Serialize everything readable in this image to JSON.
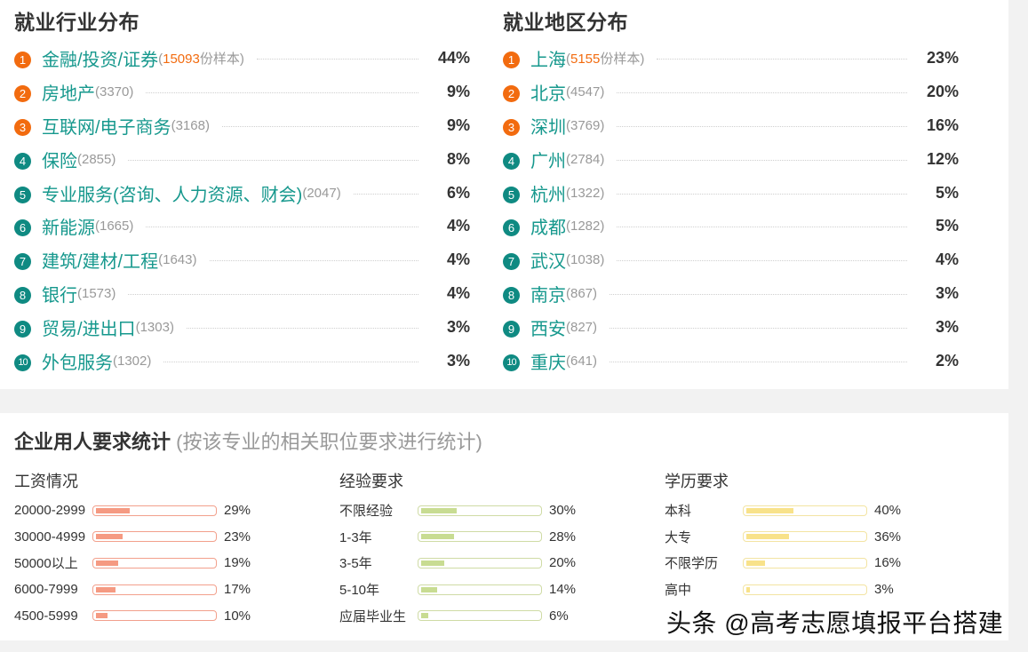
{
  "industry": {
    "title": "就业行业分布",
    "items": [
      {
        "rank": "1",
        "name": "金融/投资/证券",
        "count_prefix": "(",
        "count": "15093",
        "count_suffix": "份样本)",
        "pct": "44%",
        "color": "orange"
      },
      {
        "rank": "2",
        "name": "房地产",
        "count_prefix": "(",
        "count": "3370",
        "count_suffix": ")",
        "pct": "9%",
        "color": "orange"
      },
      {
        "rank": "3",
        "name": "互联网/电子商务",
        "count_prefix": "(",
        "count": "3168",
        "count_suffix": ")",
        "pct": "9%",
        "color": "orange"
      },
      {
        "rank": "4",
        "name": "保险",
        "count_prefix": "(",
        "count": "2855",
        "count_suffix": ")",
        "pct": "8%",
        "color": "teal"
      },
      {
        "rank": "5",
        "name": "专业服务(咨询、人力资源、财会)",
        "count_prefix": "(",
        "count": "2047",
        "count_suffix": ")",
        "pct": "6%",
        "color": "teal"
      },
      {
        "rank": "6",
        "name": "新能源",
        "count_prefix": "(",
        "count": "1665",
        "count_suffix": ")",
        "pct": "4%",
        "color": "teal"
      },
      {
        "rank": "7",
        "name": "建筑/建材/工程",
        "count_prefix": "(",
        "count": "1643",
        "count_suffix": ")",
        "pct": "4%",
        "color": "teal"
      },
      {
        "rank": "8",
        "name": "银行",
        "count_prefix": "(",
        "count": "1573",
        "count_suffix": ")",
        "pct": "4%",
        "color": "teal"
      },
      {
        "rank": "9",
        "name": "贸易/进出口",
        "count_prefix": "(",
        "count": "1303",
        "count_suffix": ")",
        "pct": "3%",
        "color": "teal"
      },
      {
        "rank": "10",
        "name": "外包服务",
        "count_prefix": "(",
        "count": "1302",
        "count_suffix": ")",
        "pct": "3%",
        "color": "teal"
      }
    ]
  },
  "region": {
    "title": "就业地区分布",
    "items": [
      {
        "rank": "1",
        "name": "上海",
        "count_prefix": "(",
        "count": "5155",
        "count_suffix": "份样本)",
        "pct": "23%",
        "color": "orange"
      },
      {
        "rank": "2",
        "name": "北京",
        "count_prefix": "(",
        "count": "4547",
        "count_suffix": ")",
        "pct": "20%",
        "color": "orange"
      },
      {
        "rank": "3",
        "name": "深圳",
        "count_prefix": "(",
        "count": "3769",
        "count_suffix": ")",
        "pct": "16%",
        "color": "orange"
      },
      {
        "rank": "4",
        "name": "广州",
        "count_prefix": "(",
        "count": "2784",
        "count_suffix": ")",
        "pct": "12%",
        "color": "teal"
      },
      {
        "rank": "5",
        "name": "杭州",
        "count_prefix": "(",
        "count": "1322",
        "count_suffix": ")",
        "pct": "5%",
        "color": "teal"
      },
      {
        "rank": "6",
        "name": "成都",
        "count_prefix": "(",
        "count": "1282",
        "count_suffix": ")",
        "pct": "5%",
        "color": "teal"
      },
      {
        "rank": "7",
        "name": "武汉",
        "count_prefix": "(",
        "count": "1038",
        "count_suffix": ")",
        "pct": "4%",
        "color": "teal"
      },
      {
        "rank": "8",
        "name": "南京",
        "count_prefix": "(",
        "count": "867",
        "count_suffix": ")",
        "pct": "3%",
        "color": "teal"
      },
      {
        "rank": "9",
        "name": "西安",
        "count_prefix": "(",
        "count": "827",
        "count_suffix": ")",
        "pct": "3%",
        "color": "teal"
      },
      {
        "rank": "10",
        "name": "重庆",
        "count_prefix": "(",
        "count": "641",
        "count_suffix": ")",
        "pct": "2%",
        "color": "teal"
      }
    ]
  },
  "requirements": {
    "title": "企业用人要求统计",
    "subtitle": " (按该专业的相关职位要求进行统计)",
    "salary": {
      "title": "工资情况",
      "items": [
        {
          "label": "20000-2999",
          "pct": "29%",
          "value": 29
        },
        {
          "label": "30000-4999",
          "pct": "23%",
          "value": 23
        },
        {
          "label": "50000以上",
          "pct": "19%",
          "value": 19
        },
        {
          "label": "6000-7999",
          "pct": "17%",
          "value": 17
        },
        {
          "label": "4500-5999",
          "pct": "10%",
          "value": 10
        }
      ]
    },
    "experience": {
      "title": "经验要求",
      "items": [
        {
          "label": "不限经验",
          "pct": "30%",
          "value": 30
        },
        {
          "label": "1-3年",
          "pct": "28%",
          "value": 28
        },
        {
          "label": "3-5年",
          "pct": "20%",
          "value": 20
        },
        {
          "label": "5-10年",
          "pct": "14%",
          "value": 14
        },
        {
          "label": "应届毕业生",
          "pct": "6%",
          "value": 6
        }
      ]
    },
    "education": {
      "title": "学历要求",
      "items": [
        {
          "label": "本科",
          "pct": "40%",
          "value": 40
        },
        {
          "label": "大专",
          "pct": "36%",
          "value": 36
        },
        {
          "label": "不限学历",
          "pct": "16%",
          "value": 16
        },
        {
          "label": "高中",
          "pct": "3%",
          "value": 3
        }
      ]
    }
  },
  "watermark": "头条 @高考志愿填报平台搭建",
  "colors": {
    "orange": "#f26b0f",
    "teal": "#0f8a82",
    "name_text": "#16988d",
    "salary_bar": "#f59a82",
    "experience_bar": "#c8dc92",
    "education_bar": "#f8e28a",
    "background": "#f2f2f2"
  },
  "chart_data": [
    {
      "type": "table",
      "title": "就业行业分布",
      "categories": [
        "金融/投资/证券",
        "房地产",
        "互联网/电子商务",
        "保险",
        "专业服务(咨询、人力资源、财会)",
        "新能源",
        "建筑/建材/工程",
        "银行",
        "贸易/进出口",
        "外包服务"
      ],
      "series": [
        {
          "name": "样本数",
          "values": [
            15093,
            3370,
            3168,
            2855,
            2047,
            1665,
            1643,
            1573,
            1303,
            1302
          ]
        },
        {
          "name": "占比(%)",
          "values": [
            44,
            9,
            9,
            8,
            6,
            4,
            4,
            4,
            3,
            3
          ]
        }
      ]
    },
    {
      "type": "table",
      "title": "就业地区分布",
      "categories": [
        "上海",
        "北京",
        "深圳",
        "广州",
        "杭州",
        "成都",
        "武汉",
        "南京",
        "西安",
        "重庆"
      ],
      "series": [
        {
          "name": "样本数",
          "values": [
            5155,
            4547,
            3769,
            2784,
            1322,
            1282,
            1038,
            867,
            827,
            641
          ]
        },
        {
          "name": "占比(%)",
          "values": [
            23,
            20,
            16,
            12,
            5,
            5,
            4,
            3,
            3,
            2
          ]
        }
      ]
    },
    {
      "type": "bar",
      "title": "工资情况",
      "categories": [
        "20000-2999",
        "30000-4999",
        "50000以上",
        "6000-7999",
        "4500-5999"
      ],
      "values": [
        29,
        23,
        19,
        17,
        10
      ],
      "ylim": [
        0,
        100
      ],
      "orientation": "horizontal"
    },
    {
      "type": "bar",
      "title": "经验要求",
      "categories": [
        "不限经验",
        "1-3年",
        "3-5年",
        "5-10年",
        "应届毕业生"
      ],
      "values": [
        30,
        28,
        20,
        14,
        6
      ],
      "ylim": [
        0,
        100
      ],
      "orientation": "horizontal"
    },
    {
      "type": "bar",
      "title": "学历要求",
      "categories": [
        "本科",
        "大专",
        "不限学历",
        "高中"
      ],
      "values": [
        40,
        36,
        16,
        3
      ],
      "ylim": [
        0,
        100
      ],
      "orientation": "horizontal"
    }
  ]
}
